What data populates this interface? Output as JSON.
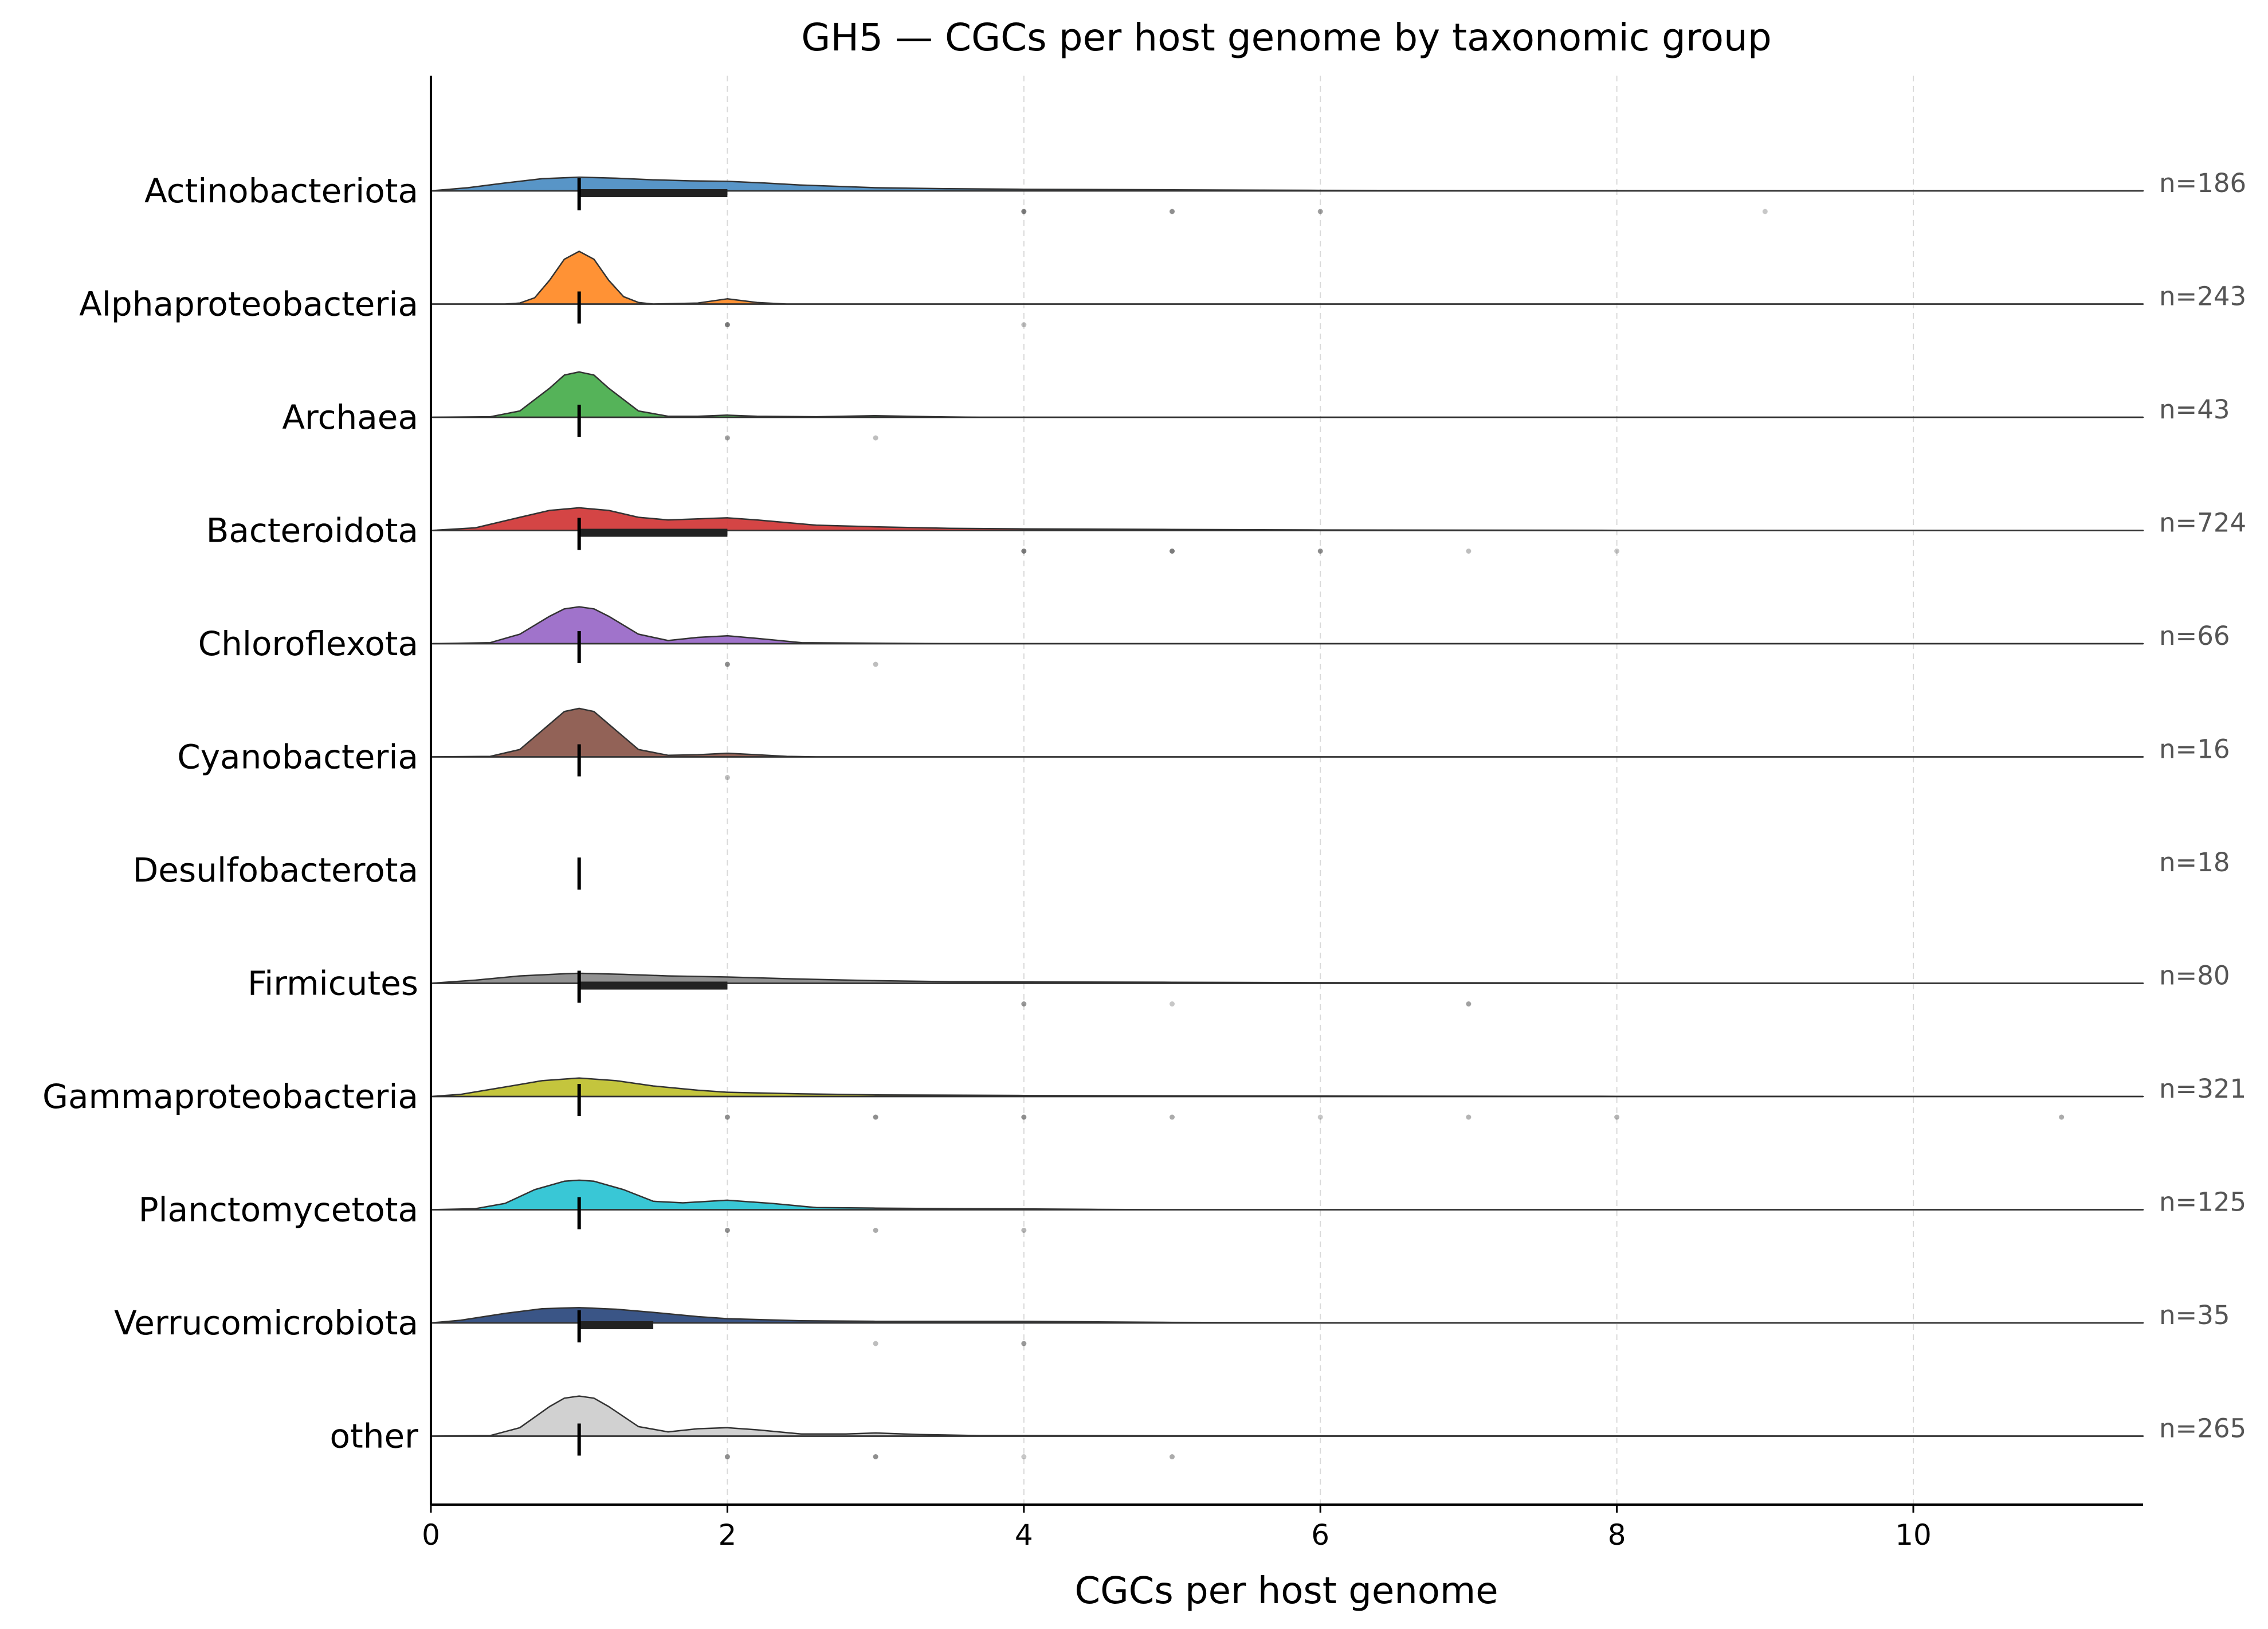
{
  "chart_data": {
    "type": "ridgeline",
    "title": "GH5 — CGCs per host genome by taxonomic group",
    "xlabel": "CGCs per host genome",
    "ylabel": "",
    "xlim": [
      0,
      11.55
    ],
    "xticks": [
      0,
      2,
      4,
      6,
      8,
      10
    ],
    "grid": "vertical dashed at x ticks",
    "groups": [
      {
        "name": "Actinobacteriota",
        "n_label": "n=186",
        "color": "#4f8fc4",
        "density": [
          [
            0,
            0.0
          ],
          [
            0.25,
            0.06
          ],
          [
            0.5,
            0.15
          ],
          [
            0.75,
            0.23
          ],
          [
            1,
            0.26
          ],
          [
            1.25,
            0.24
          ],
          [
            1.5,
            0.21
          ],
          [
            1.75,
            0.19
          ],
          [
            2,
            0.18
          ],
          [
            2.25,
            0.15
          ],
          [
            2.5,
            0.11
          ],
          [
            3,
            0.06
          ],
          [
            3.5,
            0.04
          ],
          [
            4,
            0.03
          ],
          [
            5,
            0.02
          ],
          [
            6,
            0.01
          ],
          [
            7,
            0.005
          ],
          [
            9,
            0.002
          ],
          [
            11.55,
            0
          ]
        ],
        "median": 1,
        "iqr": [
          1,
          2
        ],
        "outliers": [
          {
            "x": 4,
            "a": 0.7
          },
          {
            "x": 5,
            "a": 0.6
          },
          {
            "x": 6,
            "a": 0.5
          },
          {
            "x": 9,
            "a": 0.3
          }
        ]
      },
      {
        "name": "Alphaproteobacteria",
        "n_label": "n=243",
        "color": "#ff8c2a",
        "density": [
          [
            0,
            0
          ],
          [
            0.5,
            0
          ],
          [
            0.6,
            0.02
          ],
          [
            0.7,
            0.12
          ],
          [
            0.8,
            0.45
          ],
          [
            0.9,
            0.85
          ],
          [
            1,
            1.0
          ],
          [
            1.1,
            0.85
          ],
          [
            1.2,
            0.45
          ],
          [
            1.3,
            0.14
          ],
          [
            1.4,
            0.03
          ],
          [
            1.5,
            0
          ],
          [
            1.8,
            0.02
          ],
          [
            2,
            0.1
          ],
          [
            2.2,
            0.03
          ],
          [
            2.4,
            0
          ],
          [
            11.55,
            0
          ]
        ],
        "median": 1,
        "iqr": [
          1,
          1
        ],
        "outliers": [
          {
            "x": 2,
            "a": 0.7
          },
          {
            "x": 4,
            "a": 0.35
          }
        ]
      },
      {
        "name": "Archaea",
        "n_label": "n=43",
        "color": "#4caf50",
        "density": [
          [
            0,
            0
          ],
          [
            0.4,
            0.01
          ],
          [
            0.6,
            0.12
          ],
          [
            0.8,
            0.55
          ],
          [
            0.9,
            0.8
          ],
          [
            1,
            0.86
          ],
          [
            1.1,
            0.8
          ],
          [
            1.2,
            0.55
          ],
          [
            1.4,
            0.12
          ],
          [
            1.6,
            0.02
          ],
          [
            1.8,
            0.02
          ],
          [
            2,
            0.04
          ],
          [
            2.2,
            0.02
          ],
          [
            2.6,
            0.01
          ],
          [
            3,
            0.03
          ],
          [
            3.4,
            0.01
          ],
          [
            3.7,
            0
          ],
          [
            11.55,
            0
          ]
        ],
        "median": 1,
        "iqr": [
          1,
          1
        ],
        "outliers": [
          {
            "x": 2,
            "a": 0.5
          },
          {
            "x": 3,
            "a": 0.35
          }
        ]
      },
      {
        "name": "Bacteroidota",
        "n_label": "n=724",
        "color": "#d23b3b",
        "density": [
          [
            0,
            0
          ],
          [
            0.3,
            0.05
          ],
          [
            0.6,
            0.25
          ],
          [
            0.8,
            0.38
          ],
          [
            1,
            0.43
          ],
          [
            1.2,
            0.38
          ],
          [
            1.4,
            0.25
          ],
          [
            1.6,
            0.2
          ],
          [
            1.8,
            0.22
          ],
          [
            2,
            0.24
          ],
          [
            2.2,
            0.2
          ],
          [
            2.6,
            0.1
          ],
          [
            3,
            0.07
          ],
          [
            3.5,
            0.04
          ],
          [
            4,
            0.03
          ],
          [
            5,
            0.02
          ],
          [
            6,
            0.01
          ],
          [
            8,
            0.003
          ],
          [
            11.55,
            0
          ]
        ],
        "median": 1,
        "iqr": [
          1,
          2
        ],
        "outliers": [
          {
            "x": 4,
            "a": 0.7
          },
          {
            "x": 5,
            "a": 0.7
          },
          {
            "x": 6,
            "a": 0.6
          },
          {
            "x": 7,
            "a": 0.35
          },
          {
            "x": 8,
            "a": 0.3
          }
        ]
      },
      {
        "name": "Chloroflexota",
        "n_label": "n=66",
        "color": "#9b6cc8",
        "density": [
          [
            0,
            0
          ],
          [
            0.4,
            0.02
          ],
          [
            0.6,
            0.18
          ],
          [
            0.8,
            0.52
          ],
          [
            0.9,
            0.66
          ],
          [
            1,
            0.7
          ],
          [
            1.1,
            0.66
          ],
          [
            1.2,
            0.52
          ],
          [
            1.4,
            0.18
          ],
          [
            1.6,
            0.06
          ],
          [
            1.8,
            0.12
          ],
          [
            2,
            0.15
          ],
          [
            2.2,
            0.1
          ],
          [
            2.5,
            0.02
          ],
          [
            3,
            0.01
          ],
          [
            3.5,
            0
          ],
          [
            11.55,
            0
          ]
        ],
        "median": 1,
        "iqr": [
          1,
          1
        ],
        "outliers": [
          {
            "x": 2,
            "a": 0.6
          },
          {
            "x": 3,
            "a": 0.35
          }
        ]
      },
      {
        "name": "Cyanobacteria",
        "n_label": "n=16",
        "color": "#8c5a4e",
        "density": [
          [
            0,
            0
          ],
          [
            0.4,
            0.01
          ],
          [
            0.6,
            0.14
          ],
          [
            0.8,
            0.62
          ],
          [
            0.9,
            0.86
          ],
          [
            1,
            0.92
          ],
          [
            1.1,
            0.86
          ],
          [
            1.2,
            0.62
          ],
          [
            1.4,
            0.14
          ],
          [
            1.6,
            0.03
          ],
          [
            1.8,
            0.04
          ],
          [
            2,
            0.07
          ],
          [
            2.2,
            0.04
          ],
          [
            2.4,
            0.01
          ],
          [
            2.6,
            0
          ],
          [
            11.55,
            0
          ]
        ],
        "median": 1,
        "iqr": [
          1,
          1
        ],
        "outliers": [
          {
            "x": 2,
            "a": 0.35
          }
        ]
      },
      {
        "name": "Desulfobacterota",
        "n_label": "n=18",
        "color": "#888888",
        "density": [],
        "median": 1,
        "iqr": [
          1,
          1
        ],
        "outliers": []
      },
      {
        "name": "Firmicutes",
        "n_label": "n=80",
        "color": "#8c8c8c",
        "density": [
          [
            0,
            0
          ],
          [
            0.3,
            0.06
          ],
          [
            0.6,
            0.14
          ],
          [
            0.9,
            0.18
          ],
          [
            1,
            0.19
          ],
          [
            1.3,
            0.17
          ],
          [
            1.6,
            0.14
          ],
          [
            2,
            0.12
          ],
          [
            2.5,
            0.08
          ],
          [
            3,
            0.05
          ],
          [
            3.5,
            0.03
          ],
          [
            4,
            0.025
          ],
          [
            5,
            0.02
          ],
          [
            6,
            0.012
          ],
          [
            7,
            0.01
          ],
          [
            8,
            0.004
          ],
          [
            9,
            0.002
          ],
          [
            11.55,
            0
          ]
        ],
        "median": 1,
        "iqr": [
          1,
          2
        ],
        "outliers": [
          {
            "x": 4,
            "a": 0.55
          },
          {
            "x": 5,
            "a": 0.3
          },
          {
            "x": 7,
            "a": 0.5
          }
        ]
      },
      {
        "name": "Gammaproteobacteria",
        "n_label": "n=321",
        "color": "#c1c233",
        "density": [
          [
            0,
            0
          ],
          [
            0.2,
            0.04
          ],
          [
            0.5,
            0.18
          ],
          [
            0.75,
            0.3
          ],
          [
            1,
            0.35
          ],
          [
            1.25,
            0.3
          ],
          [
            1.5,
            0.2
          ],
          [
            1.8,
            0.12
          ],
          [
            2,
            0.08
          ],
          [
            2.5,
            0.05
          ],
          [
            3,
            0.03
          ],
          [
            4,
            0.02
          ],
          [
            5,
            0.012
          ],
          [
            6,
            0.008
          ],
          [
            7,
            0.005
          ],
          [
            8,
            0.003
          ],
          [
            11,
            0.001
          ],
          [
            11.55,
            0
          ]
        ],
        "median": 1,
        "iqr": [
          1,
          1
        ],
        "outliers": [
          {
            "x": 2,
            "a": 0.6
          },
          {
            "x": 3,
            "a": 0.6
          },
          {
            "x": 4,
            "a": 0.6
          },
          {
            "x": 5,
            "a": 0.45
          },
          {
            "x": 6,
            "a": 0.3
          },
          {
            "x": 7,
            "a": 0.4
          },
          {
            "x": 8,
            "a": 0.4
          },
          {
            "x": 11,
            "a": 0.45
          }
        ]
      },
      {
        "name": "Planctomycetota",
        "n_label": "n=125",
        "color": "#2ec4d4",
        "density": [
          [
            0,
            0
          ],
          [
            0.3,
            0.02
          ],
          [
            0.5,
            0.12
          ],
          [
            0.7,
            0.38
          ],
          [
            0.9,
            0.54
          ],
          [
            1,
            0.56
          ],
          [
            1.1,
            0.54
          ],
          [
            1.3,
            0.38
          ],
          [
            1.5,
            0.16
          ],
          [
            1.7,
            0.13
          ],
          [
            2,
            0.18
          ],
          [
            2.3,
            0.12
          ],
          [
            2.6,
            0.04
          ],
          [
            3,
            0.03
          ],
          [
            3.5,
            0.02
          ],
          [
            4,
            0.015
          ],
          [
            4.5,
            0.005
          ],
          [
            5,
            0
          ],
          [
            11.55,
            0
          ]
        ],
        "median": 1,
        "iqr": [
          1,
          1
        ],
        "outliers": [
          {
            "x": 2,
            "a": 0.6
          },
          {
            "x": 3,
            "a": 0.45
          },
          {
            "x": 4,
            "a": 0.4
          }
        ]
      },
      {
        "name": "Verrucomicrobiota",
        "n_label": "n=35",
        "color": "#2f4c80",
        "density": [
          [
            0,
            0
          ],
          [
            0.2,
            0.05
          ],
          [
            0.5,
            0.18
          ],
          [
            0.75,
            0.27
          ],
          [
            1,
            0.29
          ],
          [
            1.25,
            0.26
          ],
          [
            1.5,
            0.2
          ],
          [
            1.8,
            0.12
          ],
          [
            2,
            0.08
          ],
          [
            2.5,
            0.04
          ],
          [
            3,
            0.03
          ],
          [
            3.5,
            0.03
          ],
          [
            4,
            0.03
          ],
          [
            4.5,
            0.02
          ],
          [
            5,
            0.01
          ],
          [
            6,
            0.003
          ],
          [
            11.55,
            0
          ]
        ],
        "median": 1,
        "iqr": [
          1,
          1.5
        ],
        "outliers": [
          {
            "x": 3,
            "a": 0.35
          },
          {
            "x": 4,
            "a": 0.55
          }
        ]
      },
      {
        "name": "other",
        "n_label": "n=265",
        "color": "#cfcfcf",
        "density": [
          [
            0,
            0
          ],
          [
            0.4,
            0.01
          ],
          [
            0.6,
            0.16
          ],
          [
            0.8,
            0.56
          ],
          [
            0.9,
            0.72
          ],
          [
            1,
            0.76
          ],
          [
            1.1,
            0.72
          ],
          [
            1.2,
            0.56
          ],
          [
            1.4,
            0.18
          ],
          [
            1.6,
            0.08
          ],
          [
            1.8,
            0.14
          ],
          [
            2,
            0.16
          ],
          [
            2.2,
            0.12
          ],
          [
            2.5,
            0.04
          ],
          [
            2.8,
            0.04
          ],
          [
            3,
            0.06
          ],
          [
            3.3,
            0.03
          ],
          [
            3.7,
            0.01
          ],
          [
            4,
            0.01
          ],
          [
            5,
            0.005
          ],
          [
            11.55,
            0
          ]
        ],
        "median": 1,
        "iqr": [
          1,
          1
        ],
        "outliers": [
          {
            "x": 2,
            "a": 0.6
          },
          {
            "x": 3,
            "a": 0.6
          },
          {
            "x": 4,
            "a": 0.3
          },
          {
            "x": 5,
            "a": 0.45
          }
        ]
      }
    ]
  }
}
